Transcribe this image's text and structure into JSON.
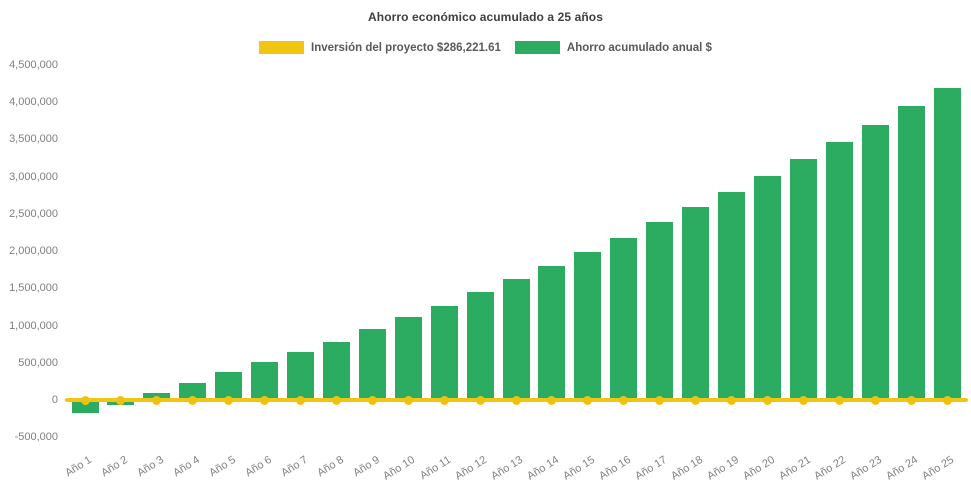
{
  "title": "Ahorro económico acumulado a 25 años",
  "legend": [
    {
      "id": "investment",
      "label": "Inversión del proyecto $286,221.61",
      "color": "#F2C512"
    },
    {
      "id": "savings",
      "label": "Ahorro acumulado anual $",
      "color": "#2BAC60"
    }
  ],
  "chart_data": {
    "type": "bar",
    "title": "Ahorro económico acumulado a 25 años",
    "categories": [
      "Año 1",
      "Año 2",
      "Año 3",
      "Año 4",
      "Año 5",
      "Año 6",
      "Año 7",
      "Año 8",
      "Año 9",
      "Año 10",
      "Año 11",
      "Año 12",
      "Año 13",
      "Año 14",
      "Año 15",
      "Año 16",
      "Año 17",
      "Año 18",
      "Año 19",
      "Año 20",
      "Año 21",
      "Año 22",
      "Año 23",
      "Año 24",
      "Año 25"
    ],
    "series": [
      {
        "name": "Ahorro acumulado anual $",
        "type": "bar",
        "color": "#2BAC60",
        "values": [
          -180000,
          -70000,
          90000,
          225000,
          370000,
          510000,
          645000,
          785000,
          950000,
          1120000,
          1265000,
          1445000,
          1625000,
          1795000,
          1990000,
          2180000,
          2385000,
          2590000,
          2790000,
          3005000,
          3235000,
          3465000,
          3695000,
          3950000,
          4190000
        ]
      },
      {
        "name": "Inversión del proyecto $286,221.61",
        "type": "line",
        "color": "#F2C512",
        "marker": "circle",
        "stated_value": 286221.61,
        "plotted_value": 0,
        "values": [
          0,
          0,
          0,
          0,
          0,
          0,
          0,
          0,
          0,
          0,
          0,
          0,
          0,
          0,
          0,
          0,
          0,
          0,
          0,
          0,
          0,
          0,
          0,
          0,
          0
        ]
      }
    ],
    "xlabel": "",
    "ylabel": "",
    "ylim": [
      -500000,
      4500000
    ],
    "y_tick_step": 500000,
    "y_tick_labels": [
      "4,500,000",
      "4,000,000",
      "3,500,000",
      "3,000,000",
      "2,500,000",
      "2,000,000",
      "1,500,000",
      "1,000,000",
      "500,000",
      "0",
      "-500,000"
    ],
    "grid": false,
    "legend_position": "top-center",
    "x_label_rotation_deg": -32,
    "note": "Investment line is rendered flat on the zero baseline with circular markers at every category."
  },
  "colors": {
    "background": "#FFFFFF",
    "bar_green": "#2BAC60",
    "line_yellow": "#F2C512",
    "marker_yellow": "#F0C011",
    "title_text": "#3F3F3F",
    "legend_text": "#595959",
    "axis_text": "#7F7F7F"
  }
}
